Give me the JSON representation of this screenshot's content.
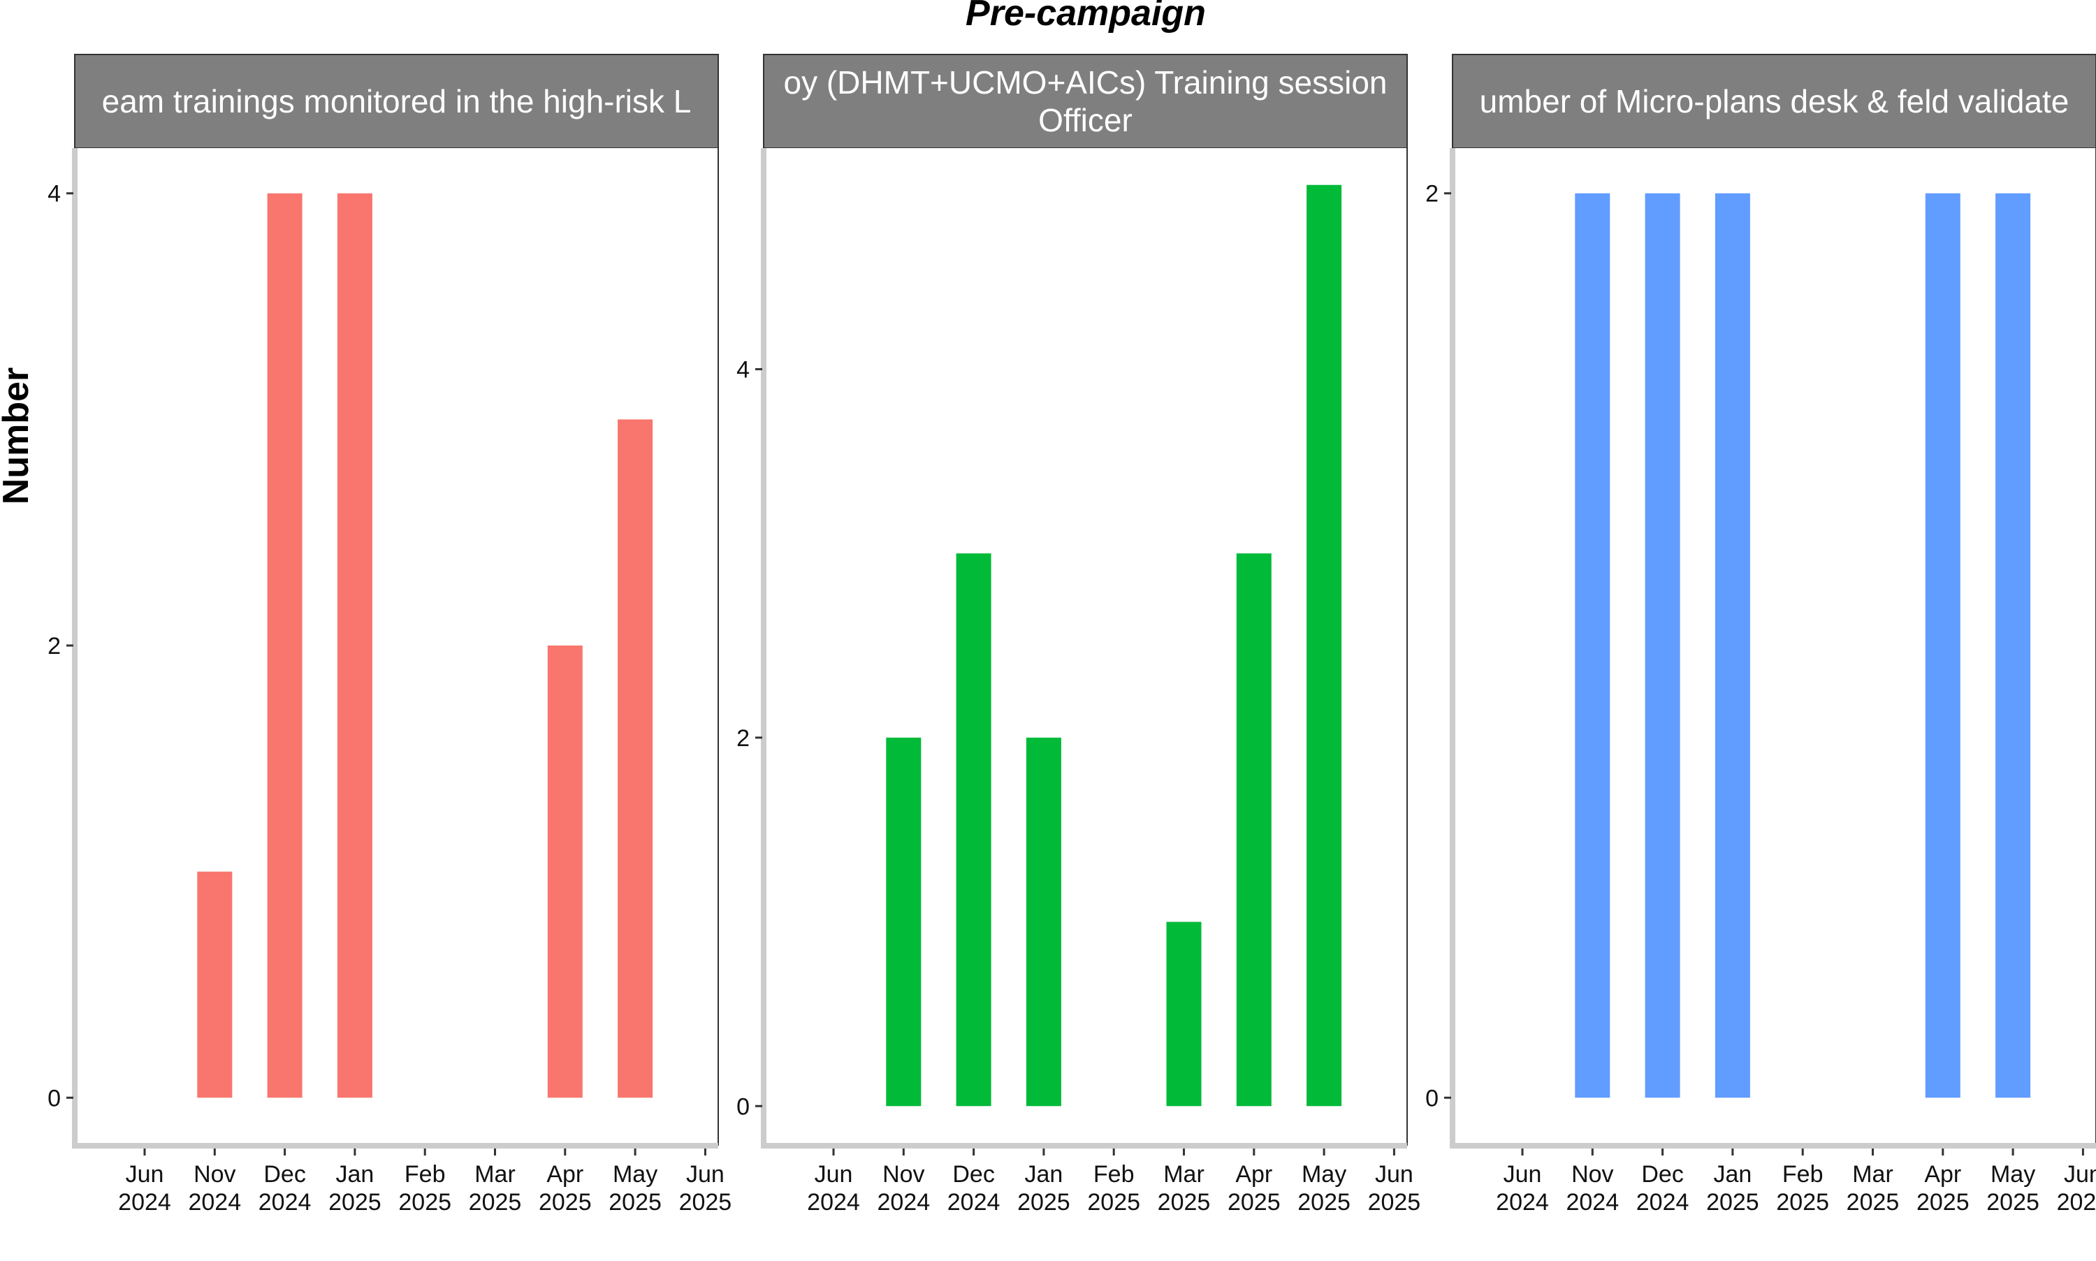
{
  "title": "Pre-campaign",
  "ylabel": "Number",
  "chart_data": {
    "type": "bar",
    "title": "Pre-campaign",
    "ylabel": "Number",
    "xlabel": "",
    "x_ticks": [
      "Jun\n2024",
      "Nov\n2024",
      "Dec\n2024",
      "Jan\n2025",
      "Feb\n2025",
      "Mar\n2025",
      "Apr\n2025",
      "May\n2025",
      "Jun\n2025"
    ],
    "grid": false,
    "legend": "none",
    "panels": [
      {
        "strip_label": "eam trainings monitored in the high-risk L",
        "color": "#F8766D",
        "ylim": [
          -0.2,
          4.2
        ],
        "y_ticks": [
          0,
          2,
          4
        ],
        "categories": [
          "Nov 2024",
          "Dec 2024",
          "Jan 2025",
          "Apr 2025",
          "May 2025"
        ],
        "values": [
          1,
          4,
          4,
          2,
          3
        ]
      },
      {
        "strip_label": "oy (DHMT+UCMO+AICs) Training session\nOfficer",
        "color": "#00BA38",
        "ylim": [
          -0.2,
          5.2
        ],
        "y_ticks": [
          0,
          2,
          4
        ],
        "categories": [
          "Nov 2024",
          "Dec 2024",
          "Jan 2025",
          "Mar 2025",
          "Apr 2025",
          "May 2025"
        ],
        "values": [
          2,
          3,
          2,
          1,
          3,
          5
        ]
      },
      {
        "strip_label": "umber of Micro-plans desk & feld validate",
        "color": "#619CFF",
        "ylim": [
          -0.1,
          2.1
        ],
        "y_ticks": [
          0,
          2
        ],
        "categories": [
          "Nov 2024",
          "Dec 2024",
          "Jan 2025",
          "Apr 2025",
          "May 2025"
        ],
        "values": [
          2,
          2,
          2,
          2,
          2
        ]
      }
    ]
  }
}
